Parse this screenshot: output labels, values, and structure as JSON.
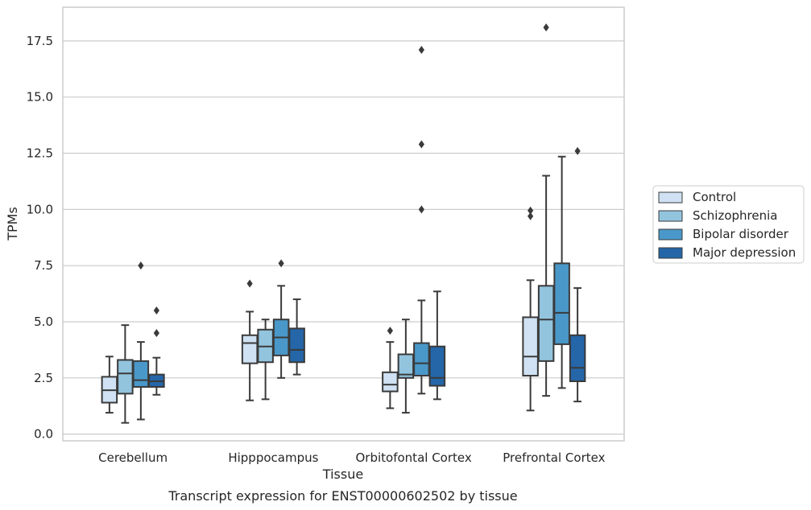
{
  "chart_data": {
    "type": "box",
    "caption": "Transcript expression for ENST00000602502 by tissue",
    "xlabel": "Tissue",
    "ylabel": "TPMs",
    "ylim": [
      -0.3,
      19.0
    ],
    "yticks": [
      0.0,
      2.5,
      5.0,
      7.5,
      10.0,
      12.5,
      15.0,
      17.5
    ],
    "ytick_labels": [
      "0.0",
      "2.5",
      "5.0",
      "7.5",
      "10.0",
      "12.5",
      "15.0",
      "17.5"
    ],
    "grid": "horizontal",
    "legend_position": "right",
    "categories": [
      "Cerebellum",
      "Hipppocampus",
      "Orbitofontal Cortex",
      "Prefrontal Cortex"
    ],
    "series": [
      {
        "name": "Control",
        "color": "#cfe1f2",
        "boxes": [
          {
            "whislo": 0.95,
            "q1": 1.4,
            "med": 1.95,
            "q3": 2.55,
            "whishi": 3.45,
            "fliers": []
          },
          {
            "whislo": 1.5,
            "q1": 3.15,
            "med": 4.05,
            "q3": 4.4,
            "whishi": 5.45,
            "fliers": [
              6.7
            ]
          },
          {
            "whislo": 1.15,
            "q1": 1.9,
            "med": 2.2,
            "q3": 2.75,
            "whishi": 4.1,
            "fliers": [
              4.6
            ]
          },
          {
            "whislo": 1.05,
            "q1": 2.6,
            "med": 3.45,
            "q3": 5.2,
            "whishi": 6.85,
            "fliers": [
              9.7,
              9.95
            ]
          }
        ]
      },
      {
        "name": "Schizophrenia",
        "color": "#93c4de",
        "boxes": [
          {
            "whislo": 0.5,
            "q1": 1.8,
            "med": 2.7,
            "q3": 3.3,
            "whishi": 4.85,
            "fliers": []
          },
          {
            "whislo": 1.55,
            "q1": 3.2,
            "med": 3.9,
            "q3": 4.65,
            "whishi": 5.1,
            "fliers": []
          },
          {
            "whislo": 0.95,
            "q1": 2.5,
            "med": 2.65,
            "q3": 3.55,
            "whishi": 5.1,
            "fliers": []
          },
          {
            "whislo": 1.7,
            "q1": 3.25,
            "med": 5.1,
            "q3": 6.6,
            "whishi": 11.5,
            "fliers": [
              18.1
            ]
          }
        ]
      },
      {
        "name": "Bipolar disorder",
        "color": "#4a98c9",
        "boxes": [
          {
            "whislo": 0.65,
            "q1": 2.1,
            "med": 2.4,
            "q3": 3.25,
            "whishi": 4.1,
            "fliers": [
              7.5
            ]
          },
          {
            "whislo": 2.5,
            "q1": 3.5,
            "med": 4.3,
            "q3": 5.1,
            "whishi": 6.6,
            "fliers": [
              7.6
            ]
          },
          {
            "whislo": 1.8,
            "q1": 2.6,
            "med": 3.15,
            "q3": 4.05,
            "whishi": 5.95,
            "fliers": [
              10.0,
              12.9,
              17.1
            ]
          },
          {
            "whislo": 2.05,
            "q1": 4.0,
            "med": 5.4,
            "q3": 7.6,
            "whishi": 12.35,
            "fliers": []
          }
        ]
      },
      {
        "name": "Major depression",
        "color": "#2466a8",
        "boxes": [
          {
            "whislo": 1.75,
            "q1": 2.1,
            "med": 2.35,
            "q3": 2.65,
            "whishi": 3.4,
            "fliers": [
              4.5,
              5.5
            ]
          },
          {
            "whislo": 2.65,
            "q1": 3.2,
            "med": 3.75,
            "q3": 4.7,
            "whishi": 6.0,
            "fliers": []
          },
          {
            "whislo": 1.55,
            "q1": 2.15,
            "med": 2.5,
            "q3": 3.9,
            "whishi": 6.35,
            "fliers": []
          },
          {
            "whislo": 1.45,
            "q1": 2.35,
            "med": 2.95,
            "q3": 4.4,
            "whishi": 6.5,
            "fliers": [
              12.6
            ]
          }
        ]
      }
    ]
  }
}
